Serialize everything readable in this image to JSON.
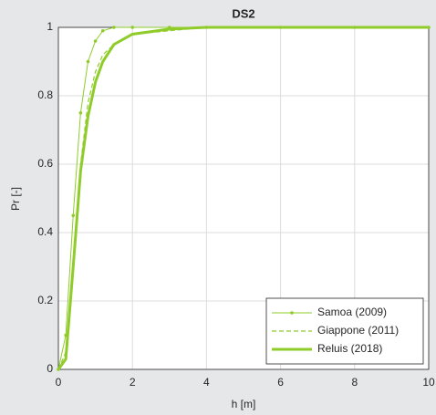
{
  "chart_data": {
    "type": "line",
    "title": "DS2",
    "x_label": "h [m]",
    "y_label": "Pr [-]",
    "x": [
      0,
      0.2,
      0.4,
      0.6,
      0.8,
      1,
      1.2,
      1.5,
      2,
      3,
      4,
      6,
      8,
      10
    ],
    "series": [
      {
        "name": "Samoa (2009)",
        "color": "#8fcc2a",
        "style": "marker",
        "values": [
          0,
          0.1,
          0.45,
          0.75,
          0.9,
          0.96,
          0.99,
          1,
          1,
          1,
          1,
          1,
          1,
          1
        ]
      },
      {
        "name": "Giappone (2011)",
        "color": "#8fcc2a",
        "style": "dashed",
        "values": [
          0,
          0.05,
          0.3,
          0.6,
          0.78,
          0.87,
          0.92,
          0.95,
          0.98,
          0.99,
          1,
          1,
          1,
          1
        ]
      },
      {
        "name": "Reluis (2018)",
        "color": "#8fcc2a",
        "style": "thick",
        "values": [
          0,
          0.03,
          0.3,
          0.58,
          0.74,
          0.84,
          0.9,
          0.95,
          0.98,
          0.995,
          1,
          1,
          1,
          1
        ]
      }
    ],
    "xlim": [
      0,
      10
    ],
    "xticks": [
      0,
      2,
      4,
      6,
      8,
      10
    ],
    "ylim": [
      0,
      1
    ],
    "yticks": [
      0,
      0.2,
      0.4,
      0.6,
      0.8,
      1
    ],
    "grid": true,
    "legend": "lower-right"
  }
}
